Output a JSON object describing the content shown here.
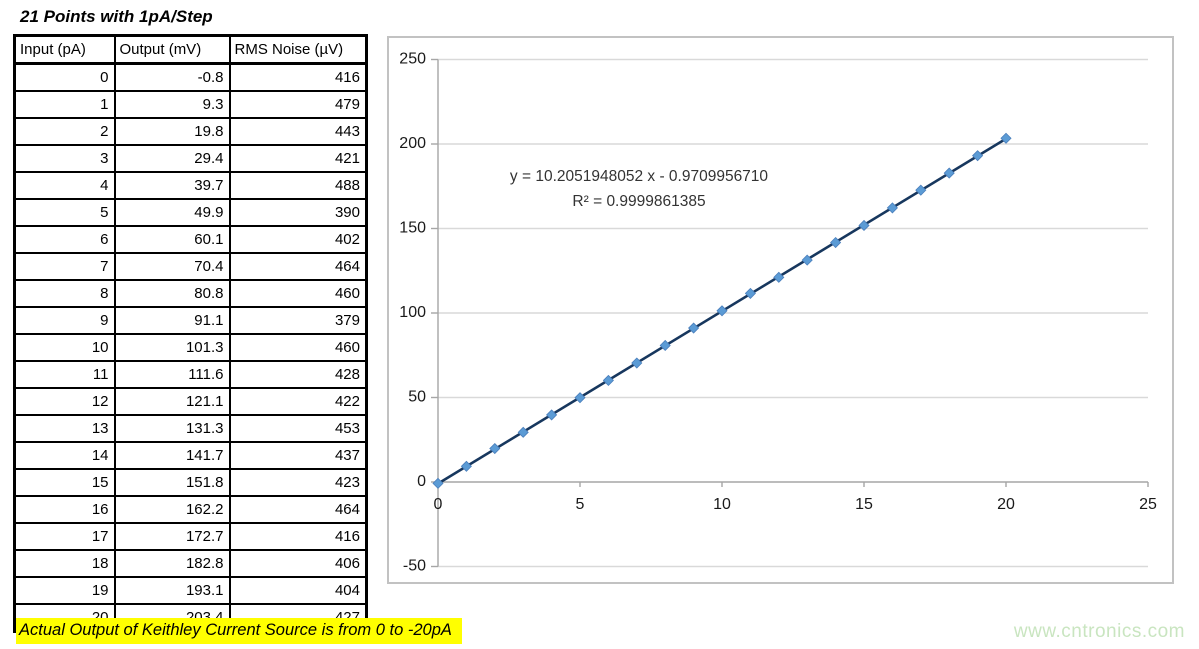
{
  "page": {
    "title": "21 Points with 1pA/Step",
    "annotation": "Actual Output of Keithley Current Source is from 0 to -20pA",
    "watermark": "www.cntronics.com"
  },
  "table": {
    "headers": [
      "Input (pA)",
      "Output (mV)",
      "RMS Noise (µV)"
    ],
    "rows": [
      [
        "0",
        "-0.8",
        "416"
      ],
      [
        "1",
        "9.3",
        "479"
      ],
      [
        "2",
        "19.8",
        "443"
      ],
      [
        "3",
        "29.4",
        "421"
      ],
      [
        "4",
        "39.7",
        "488"
      ],
      [
        "5",
        "49.9",
        "390"
      ],
      [
        "6",
        "60.1",
        "402"
      ],
      [
        "7",
        "70.4",
        "464"
      ],
      [
        "8",
        "80.8",
        "460"
      ],
      [
        "9",
        "91.1",
        "379"
      ],
      [
        "10",
        "101.3",
        "460"
      ],
      [
        "11",
        "111.6",
        "428"
      ],
      [
        "12",
        "121.1",
        "422"
      ],
      [
        "13",
        "131.3",
        "453"
      ],
      [
        "14",
        "141.7",
        "437"
      ],
      [
        "15",
        "151.8",
        "423"
      ],
      [
        "16",
        "162.2",
        "464"
      ],
      [
        "17",
        "172.7",
        "416"
      ],
      [
        "18",
        "182.8",
        "406"
      ],
      [
        "19",
        "193.1",
        "404"
      ],
      [
        "20",
        "203.4",
        "427"
      ]
    ]
  },
  "chart_data": {
    "type": "scatter",
    "title": "",
    "xlabel": "",
    "ylabel": "",
    "x": [
      0,
      1,
      2,
      3,
      4,
      5,
      6,
      7,
      8,
      9,
      10,
      11,
      12,
      13,
      14,
      15,
      16,
      17,
      18,
      19,
      20
    ],
    "y": [
      -0.8,
      9.3,
      19.8,
      29.4,
      39.7,
      49.9,
      60.1,
      70.4,
      80.8,
      91.1,
      101.3,
      111.6,
      121.1,
      131.3,
      141.7,
      151.8,
      162.2,
      172.7,
      182.8,
      193.1,
      203.4
    ],
    "xlim": [
      0,
      25
    ],
    "ylim": [
      -50,
      250
    ],
    "x_ticks": [
      0,
      5,
      10,
      15,
      20,
      25
    ],
    "y_ticks": [
      250,
      200,
      150,
      100,
      50,
      0,
      -50
    ],
    "grid": true,
    "legend": false,
    "marker": "diamond",
    "marker_color": "#5B9BD5",
    "trendline": {
      "slope": 10.2051948052,
      "intercept": -0.970995671,
      "x_start": 0,
      "x_end": 20,
      "color": "#17375E",
      "equation_label": "y = 10.2051948052 x - 0.9709956710",
      "r2_label": "R² = 0.9999861385"
    },
    "colors": {
      "gridline": "#D9D9D9",
      "axis": "#A6A6A6",
      "tick_label": "#1A1A1A"
    }
  }
}
